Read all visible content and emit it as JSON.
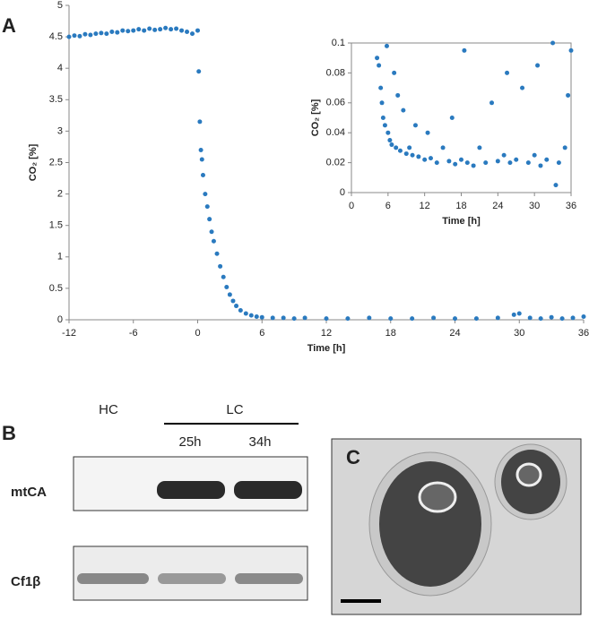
{
  "chart_data": [
    {
      "type": "scatter",
      "y_label": "CO₂ [%]",
      "x_label": "Time [h]",
      "color": "#2a7abf",
      "xlim": [
        -12,
        36
      ],
      "xticks": [
        -12,
        -6,
        0,
        6,
        12,
        18,
        24,
        30,
        36
      ],
      "ylim": [
        0,
        5
      ],
      "yticks": [
        0,
        0.5,
        1,
        1.5,
        2,
        2.5,
        3,
        3.5,
        4,
        4.5,
        5
      ],
      "x": [
        -12,
        -11.5,
        -11,
        -10.5,
        -10,
        -9.5,
        -9,
        -8.5,
        -8,
        -7.5,
        -7,
        -6.5,
        -6,
        -5.5,
        -5,
        -4.5,
        -4,
        -3.5,
        -3,
        -2.5,
        -2,
        -1.5,
        -1,
        -0.5,
        0,
        0.1,
        0.2,
        0.3,
        0.4,
        0.5,
        0.7,
        0.9,
        1.1,
        1.3,
        1.5,
        1.8,
        2.1,
        2.4,
        2.7,
        3,
        3.3,
        3.6,
        4,
        4.5,
        5,
        5.5,
        6,
        7,
        8,
        9,
        10,
        12,
        14,
        16,
        18,
        20,
        22,
        24,
        26,
        28,
        29.5,
        30,
        31,
        32,
        33,
        34,
        35,
        36
      ],
      "values": [
        4.5,
        4.52,
        4.51,
        4.54,
        4.53,
        4.55,
        4.56,
        4.55,
        4.58,
        4.57,
        4.6,
        4.59,
        4.6,
        4.62,
        4.6,
        4.63,
        4.61,
        4.62,
        4.64,
        4.62,
        4.63,
        4.6,
        4.58,
        4.55,
        4.6,
        3.95,
        3.15,
        2.7,
        2.55,
        2.3,
        2.0,
        1.8,
        1.6,
        1.4,
        1.25,
        1.05,
        0.85,
        0.68,
        0.52,
        0.4,
        0.3,
        0.22,
        0.15,
        0.1,
        0.07,
        0.05,
        0.04,
        0.03,
        0.03,
        0.02,
        0.03,
        0.02,
        0.02,
        0.03,
        0.02,
        0.02,
        0.03,
        0.02,
        0.02,
        0.03,
        0.08,
        0.1,
        0.03,
        0.02,
        0.04,
        0.02,
        0.03,
        0.05
      ]
    },
    {
      "type": "scatter",
      "y_label": "CO₂ [%]",
      "x_label": "Time [h]",
      "color": "#2a7abf",
      "xlim": [
        0,
        36
      ],
      "xticks": [
        0,
        6,
        12,
        18,
        24,
        30,
        36
      ],
      "ylim": [
        0,
        0.1
      ],
      "yticks": [
        0,
        0.02,
        0.04,
        0.06,
        0.08,
        0.1
      ],
      "x": [
        4.2,
        4.5,
        4.8,
        5,
        5.2,
        5.5,
        5.8,
        6,
        6.3,
        6.6,
        7,
        7.3,
        7.6,
        8,
        8.5,
        9,
        9.5,
        10,
        10.5,
        11,
        12,
        12.5,
        13,
        14,
        15,
        16,
        16.5,
        17,
        18,
        18.5,
        19,
        20,
        21,
        22,
        23,
        24,
        25,
        25.5,
        26,
        27,
        28,
        29,
        30,
        30.5,
        31,
        32,
        33,
        33.5,
        34,
        35,
        35.5,
        36
      ],
      "values": [
        0.09,
        0.085,
        0.07,
        0.06,
        0.05,
        0.045,
        0.098,
        0.04,
        0.035,
        0.032,
        0.08,
        0.03,
        0.065,
        0.028,
        0.055,
        0.026,
        0.03,
        0.025,
        0.045,
        0.024,
        0.022,
        0.04,
        0.023,
        0.02,
        0.03,
        0.021,
        0.05,
        0.019,
        0.022,
        0.095,
        0.02,
        0.018,
        0.03,
        0.02,
        0.06,
        0.021,
        0.025,
        0.08,
        0.02,
        0.022,
        0.07,
        0.02,
        0.025,
        0.085,
        0.018,
        0.022,
        0.1,
        0.005,
        0.02,
        0.03,
        0.065,
        0.095
      ]
    }
  ],
  "panels": {
    "a": "A",
    "b": "B",
    "c": "C",
    "hc": "HC",
    "lc": "LC",
    "t1": "25h",
    "t2": "34h",
    "row1": "mtCA",
    "row2": "Cf1β"
  }
}
